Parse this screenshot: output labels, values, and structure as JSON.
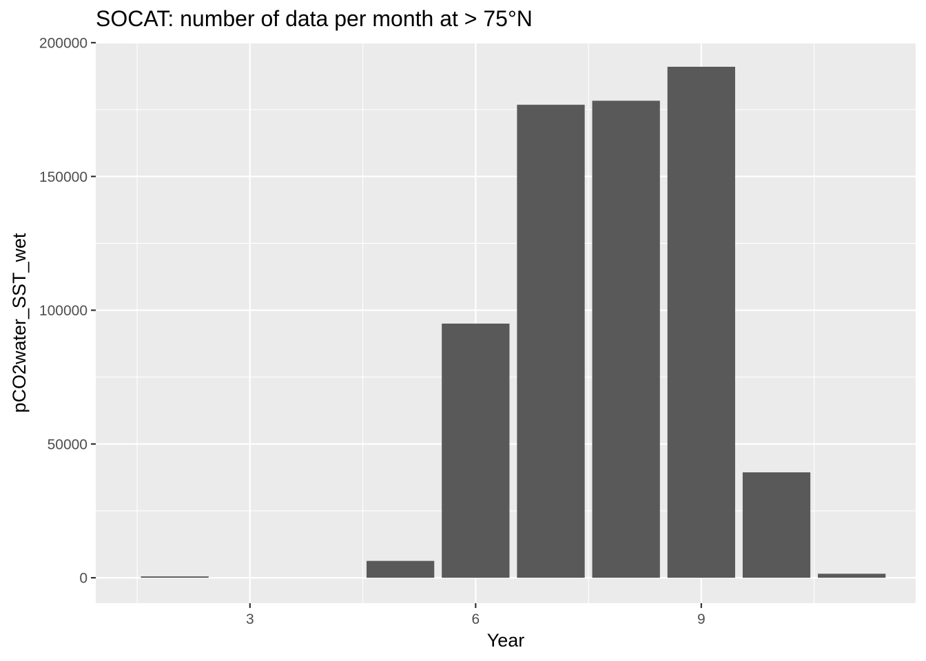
{
  "chart_data": {
    "type": "bar",
    "title": "SOCAT: number of data per month at > 75°N",
    "xlabel": "Year",
    "ylabel": "pCO2water_SST_wet",
    "x": [
      2,
      3,
      4,
      5,
      6,
      7,
      8,
      9,
      10,
      11
    ],
    "values": [
      500,
      0,
      0,
      6300,
      95000,
      176800,
      178300,
      191000,
      39400,
      1500
    ],
    "xlim": [
      0.95,
      11.85
    ],
    "ylim": [
      -9500,
      200000
    ],
    "xticks": [
      3,
      6,
      9
    ],
    "xtick_labels": [
      "3",
      "6",
      "9"
    ],
    "yticks": [
      0,
      50000,
      100000,
      150000,
      200000
    ],
    "ytick_labels": [
      "0",
      "50000",
      "100000",
      "150000",
      "200000"
    ],
    "bar_color": "#595959",
    "panel_background": "#ebebeb",
    "grid_color": "#ffffff",
    "grid": true
  }
}
